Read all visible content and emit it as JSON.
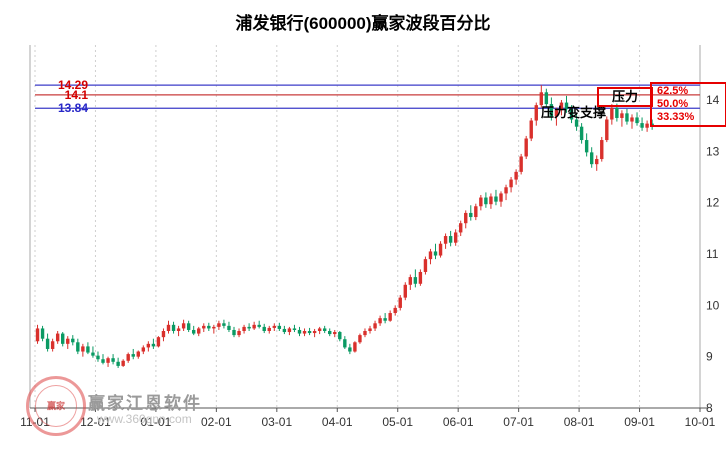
{
  "title": "浦发银行(600000)赢家波段百分比",
  "watermark": {
    "brand": "赢家江恩软件",
    "url": "www.360gnn.com",
    "stamp_text": "赢家"
  },
  "annotations": {
    "pressure": "压力",
    "pressure_to_support": "压力变支撑"
  },
  "colors": {
    "up": "#d9302c",
    "down": "#0a9a63",
    "level_red": "#d40000",
    "level_blue": "#2828c8",
    "box_red": "#e60000"
  },
  "chart_data": {
    "type": "candlestick",
    "title": "浦发银行(600000)赢家波段百分比",
    "x_ticks": [
      "11-01",
      "12-01",
      "01-01",
      "02-01",
      "03-01",
      "04-01",
      "05-01",
      "06-01",
      "07-01",
      "08-01",
      "09-01",
      "10-01"
    ],
    "y_ticks": [
      14,
      13,
      12,
      11,
      10,
      9,
      8
    ],
    "ylim": [
      8,
      15.1
    ],
    "grid": "vertical-dotted",
    "up_color": "#d9302c",
    "down_color": "#0a9a63",
    "level_lines": [
      {
        "price": 14.29,
        "label": "14.29",
        "label_color": "#d40000",
        "line_color": "#3c3cc8",
        "pct": "62.5%"
      },
      {
        "price": 14.1,
        "label": "14.1",
        "label_color": "#d40000",
        "line_color": "#c83c3c",
        "pct": "50.0%"
      },
      {
        "price": 13.84,
        "label": "13.84",
        "label_color": "#2828c8",
        "line_color": "#3c3cc8",
        "pct": "33.33%"
      }
    ],
    "candles": [
      [
        9.3,
        9.62,
        9.25,
        9.55
      ],
      [
        9.55,
        9.6,
        9.3,
        9.35
      ],
      [
        9.35,
        9.45,
        9.1,
        9.15
      ],
      [
        9.15,
        9.35,
        9.1,
        9.3
      ],
      [
        9.3,
        9.5,
        9.25,
        9.45
      ],
      [
        9.45,
        9.48,
        9.2,
        9.25
      ],
      [
        9.25,
        9.4,
        9.15,
        9.35
      ],
      [
        9.35,
        9.42,
        9.22,
        9.28
      ],
      [
        9.28,
        9.35,
        9.05,
        9.1
      ],
      [
        9.1,
        9.25,
        9.0,
        9.2
      ],
      [
        9.2,
        9.28,
        9.05,
        9.08
      ],
      [
        9.08,
        9.2,
        8.98,
        9.02
      ],
      [
        9.02,
        9.1,
        8.9,
        8.95
      ],
      [
        8.95,
        9.05,
        8.85,
        8.88
      ],
      [
        8.88,
        9.0,
        8.8,
        8.97
      ],
      [
        8.97,
        9.05,
        8.85,
        8.9
      ],
      [
        8.9,
        8.98,
        8.78,
        8.82
      ],
      [
        8.82,
        8.95,
        8.8,
        8.92
      ],
      [
        8.92,
        9.08,
        8.88,
        9.05
      ],
      [
        9.05,
        9.15,
        8.95,
        9.0
      ],
      [
        9.0,
        9.12,
        8.96,
        9.1
      ],
      [
        9.1,
        9.22,
        9.05,
        9.18
      ],
      [
        9.18,
        9.3,
        9.1,
        9.25
      ],
      [
        9.25,
        9.35,
        9.15,
        9.2
      ],
      [
        9.2,
        9.4,
        9.18,
        9.38
      ],
      [
        9.38,
        9.55,
        9.3,
        9.5
      ],
      [
        9.5,
        9.7,
        9.45,
        9.62
      ],
      [
        9.62,
        9.68,
        9.45,
        9.5
      ],
      [
        9.5,
        9.6,
        9.4,
        9.55
      ],
      [
        9.55,
        9.72,
        9.5,
        9.65
      ],
      [
        9.65,
        9.7,
        9.48,
        9.52
      ],
      [
        9.52,
        9.6,
        9.42,
        9.45
      ],
      [
        9.45,
        9.58,
        9.4,
        9.55
      ],
      [
        9.55,
        9.65,
        9.48,
        9.6
      ],
      [
        9.6,
        9.66,
        9.5,
        9.55
      ],
      [
        9.55,
        9.62,
        9.45,
        9.58
      ],
      [
        9.58,
        9.7,
        9.52,
        9.65
      ],
      [
        9.65,
        9.72,
        9.55,
        9.6
      ],
      [
        9.6,
        9.68,
        9.48,
        9.52
      ],
      [
        9.52,
        9.58,
        9.38,
        9.42
      ],
      [
        9.42,
        9.55,
        9.38,
        9.5
      ],
      [
        9.5,
        9.62,
        9.45,
        9.58
      ],
      [
        9.58,
        9.65,
        9.5,
        9.55
      ],
      [
        9.55,
        9.68,
        9.52,
        9.62
      ],
      [
        9.62,
        9.7,
        9.55,
        9.58
      ],
      [
        9.58,
        9.64,
        9.46,
        9.5
      ],
      [
        9.5,
        9.6,
        9.45,
        9.56
      ],
      [
        9.56,
        9.65,
        9.5,
        9.6
      ],
      [
        9.6,
        9.66,
        9.5,
        9.54
      ],
      [
        9.54,
        9.6,
        9.44,
        9.48
      ],
      [
        9.48,
        9.58,
        9.42,
        9.55
      ],
      [
        9.55,
        9.62,
        9.48,
        9.52
      ],
      [
        9.52,
        9.58,
        9.4,
        9.45
      ],
      [
        9.45,
        9.55,
        9.4,
        9.5
      ],
      [
        9.5,
        9.56,
        9.42,
        9.46
      ],
      [
        9.46,
        9.54,
        9.38,
        9.5
      ],
      [
        9.5,
        9.58,
        9.44,
        9.55
      ],
      [
        9.55,
        9.6,
        9.46,
        9.5
      ],
      [
        9.5,
        9.55,
        9.4,
        9.44
      ],
      [
        9.44,
        9.52,
        9.38,
        9.48
      ],
      [
        9.48,
        9.5,
        9.3,
        9.34
      ],
      [
        9.34,
        9.4,
        9.15,
        9.18
      ],
      [
        9.18,
        9.25,
        9.05,
        9.1
      ],
      [
        9.1,
        9.3,
        9.08,
        9.28
      ],
      [
        9.28,
        9.45,
        9.25,
        9.42
      ],
      [
        9.42,
        9.55,
        9.38,
        9.5
      ],
      [
        9.5,
        9.6,
        9.45,
        9.55
      ],
      [
        9.55,
        9.7,
        9.5,
        9.65
      ],
      [
        9.65,
        9.8,
        9.6,
        9.75
      ],
      [
        9.75,
        9.85,
        9.65,
        9.7
      ],
      [
        9.7,
        9.9,
        9.68,
        9.85
      ],
      [
        9.85,
        10.0,
        9.8,
        9.95
      ],
      [
        9.95,
        10.2,
        9.9,
        10.15
      ],
      [
        10.15,
        10.45,
        10.1,
        10.4
      ],
      [
        10.4,
        10.6,
        10.3,
        10.55
      ],
      [
        10.55,
        10.7,
        10.35,
        10.42
      ],
      [
        10.42,
        10.7,
        10.38,
        10.65
      ],
      [
        10.65,
        10.95,
        10.6,
        10.9
      ],
      [
        10.9,
        11.1,
        10.8,
        11.05
      ],
      [
        11.05,
        11.2,
        10.9,
        10.97
      ],
      [
        10.97,
        11.25,
        10.93,
        11.2
      ],
      [
        11.2,
        11.4,
        11.1,
        11.35
      ],
      [
        11.35,
        11.45,
        11.15,
        11.22
      ],
      [
        11.22,
        11.48,
        11.16,
        11.42
      ],
      [
        11.42,
        11.65,
        11.35,
        11.6
      ],
      [
        11.6,
        11.85,
        11.5,
        11.8
      ],
      [
        11.8,
        11.95,
        11.65,
        11.72
      ],
      [
        11.72,
        11.98,
        11.66,
        11.93
      ],
      [
        11.93,
        12.15,
        11.85,
        12.1
      ],
      [
        12.1,
        12.2,
        11.9,
        11.97
      ],
      [
        11.97,
        12.18,
        11.88,
        12.12
      ],
      [
        12.12,
        12.25,
        11.95,
        12.02
      ],
      [
        12.02,
        12.22,
        11.92,
        12.18
      ],
      [
        12.18,
        12.35,
        12.05,
        12.3
      ],
      [
        12.3,
        12.5,
        12.2,
        12.45
      ],
      [
        12.45,
        12.65,
        12.35,
        12.6
      ],
      [
        12.6,
        12.95,
        12.55,
        12.9
      ],
      [
        12.9,
        13.3,
        12.85,
        13.25
      ],
      [
        13.25,
        13.65,
        13.2,
        13.6
      ],
      [
        13.6,
        13.95,
        13.5,
        13.9
      ],
      [
        13.9,
        14.29,
        13.85,
        14.15
      ],
      [
        14.15,
        14.22,
        13.85,
        13.92
      ],
      [
        13.92,
        14.05,
        13.6,
        13.68
      ],
      [
        13.68,
        13.85,
        13.5,
        13.8
      ],
      [
        13.8,
        14.0,
        13.7,
        13.95
      ],
      [
        13.95,
        14.08,
        13.75,
        13.82
      ],
      [
        13.82,
        13.9,
        13.55,
        13.62
      ],
      [
        13.62,
        13.75,
        13.4,
        13.48
      ],
      [
        13.48,
        13.55,
        13.15,
        13.22
      ],
      [
        13.22,
        13.35,
        12.9,
        12.98
      ],
      [
        12.98,
        13.08,
        12.68,
        12.75
      ],
      [
        12.75,
        12.92,
        12.62,
        12.85
      ],
      [
        12.85,
        13.28,
        12.8,
        13.22
      ],
      [
        13.22,
        13.68,
        13.18,
        13.62
      ],
      [
        13.62,
        13.92,
        13.52,
        13.85
      ],
      [
        13.85,
        13.93,
        13.58,
        13.65
      ],
      [
        13.65,
        13.8,
        13.48,
        13.74
      ],
      [
        13.74,
        13.83,
        13.52,
        13.58
      ],
      [
        13.58,
        13.72,
        13.44,
        13.66
      ],
      [
        13.66,
        13.76,
        13.5,
        13.55
      ],
      [
        13.55,
        13.66,
        13.4,
        13.46
      ],
      [
        13.46,
        13.6,
        13.38,
        13.54
      ],
      [
        13.54,
        13.62,
        13.42,
        13.48
      ]
    ]
  }
}
